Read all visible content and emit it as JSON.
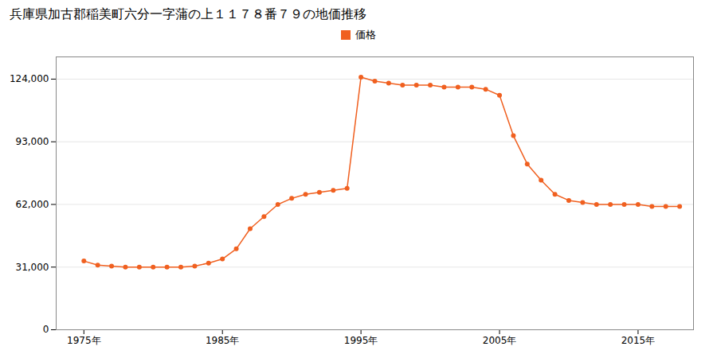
{
  "chart_data": {
    "type": "line",
    "title": "兵庫県加古郡稲美町六分一字蒲の上１１７８番７９の地価推移",
    "x": [
      1975,
      1976,
      1977,
      1978,
      1979,
      1980,
      1981,
      1982,
      1983,
      1984,
      1985,
      1986,
      1987,
      1988,
      1989,
      1990,
      1991,
      1992,
      1993,
      1994,
      1995,
      1996,
      1997,
      1998,
      1999,
      2000,
      2001,
      2002,
      2003,
      2004,
      2005,
      2006,
      2007,
      2008,
      2009,
      2010,
      2011,
      2012,
      2013,
      2014,
      2015,
      2016,
      2017,
      2018
    ],
    "series": [
      {
        "name": "価格",
        "color": "#f06020",
        "marker": "circle",
        "values": [
          34000,
          32000,
          31500,
          31000,
          31000,
          31000,
          31000,
          31000,
          31500,
          33000,
          35000,
          40000,
          50000,
          56000,
          62000,
          65000,
          67000,
          68000,
          69000,
          70000,
          125000,
          123000,
          122000,
          121000,
          121000,
          121000,
          120000,
          120000,
          120000,
          119000,
          116000,
          96000,
          82000,
          74000,
          67000,
          64000,
          63000,
          62000,
          62000,
          62000,
          62000,
          61000,
          61000,
          61000
        ]
      }
    ],
    "xlim": [
      1973,
      2019
    ],
    "xticks": [
      {
        "value": 1975,
        "label": "1975年"
      },
      {
        "value": 1985,
        "label": "1985年"
      },
      {
        "value": 1995,
        "label": "1995年"
      },
      {
        "value": 2005,
        "label": "2005年"
      },
      {
        "value": 2015,
        "label": "2015年"
      }
    ],
    "ylim": [
      0,
      135000
    ],
    "yticks": [
      0,
      {
        "value": 31000,
        "label": "31,000"
      },
      {
        "value": 62000,
        "label": "62,000"
      },
      {
        "value": 93000,
        "label": "93,000"
      },
      {
        "value": 124000,
        "label": "124,000"
      }
    ],
    "grid": "y",
    "legend": "top"
  }
}
